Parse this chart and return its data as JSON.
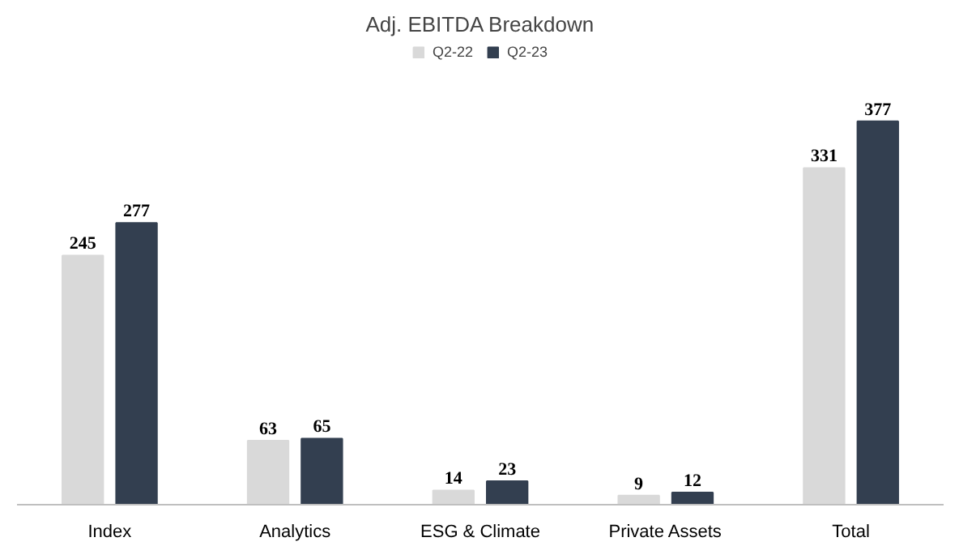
{
  "chart_data": {
    "type": "bar",
    "title": "Adj. EBITDA Breakdown",
    "categories": [
      "Index",
      "Analytics",
      "ESG & Climate",
      "Private Assets",
      "Total"
    ],
    "series": [
      {
        "name": "Q2-22",
        "color": "#d9d9d9",
        "values": [
          245,
          63,
          14,
          9,
          331
        ]
      },
      {
        "name": "Q2-23",
        "color": "#333f50",
        "values": [
          277,
          65,
          23,
          12,
          377
        ]
      }
    ],
    "data_labels": true,
    "legend": "top",
    "grid": false
  }
}
